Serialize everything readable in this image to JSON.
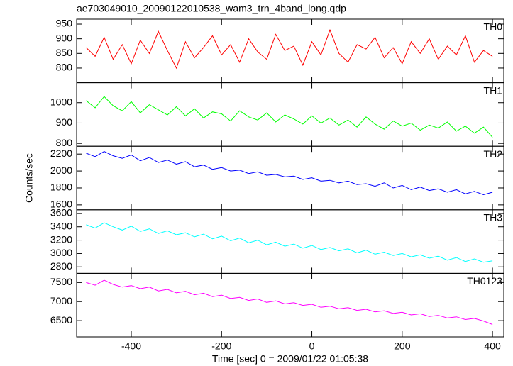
{
  "chart_data": {
    "type": "line",
    "title": "ae703049010_20090122010538_wam3_trn_4band_long.qdp",
    "xlabel": "Time [sec] 0 = 2009/01/22 01:05:38",
    "ylabel": "Counts/sec",
    "xlim": [
      -521,
      425
    ],
    "xticks": [
      -400,
      -200,
      0,
      200,
      400
    ],
    "x": [
      -500,
      -480,
      -460,
      -440,
      -420,
      -400,
      -380,
      -360,
      -340,
      -320,
      -300,
      -280,
      -260,
      -240,
      -220,
      -200,
      -180,
      -160,
      -140,
      -120,
      -100,
      -80,
      -60,
      -40,
      -20,
      0,
      20,
      40,
      60,
      80,
      100,
      120,
      140,
      160,
      180,
      200,
      220,
      240,
      260,
      280,
      300,
      320,
      340,
      360,
      380,
      400
    ],
    "series": [
      {
        "name": "TH0",
        "color": "#ff0000",
        "ylim": [
          750,
          967
        ],
        "yticks": [
          800,
          850,
          900,
          950
        ],
        "values": [
          870,
          840,
          905,
          830,
          880,
          815,
          895,
          850,
          925,
          860,
          800,
          890,
          835,
          870,
          910,
          845,
          880,
          820,
          900,
          855,
          830,
          915,
          860,
          875,
          810,
          890,
          845,
          930,
          850,
          820,
          880,
          865,
          905,
          835,
          870,
          815,
          890,
          850,
          900,
          830,
          875,
          845,
          910,
          820,
          860,
          840
        ]
      },
      {
        "name": "TH1",
        "color": "#00ff00",
        "ylim": [
          786,
          1098
        ],
        "yticks": [
          800,
          900,
          1000
        ],
        "values": [
          1010,
          975,
          1030,
          985,
          960,
          1005,
          950,
          990,
          965,
          940,
          980,
          935,
          970,
          925,
          955,
          945,
          910,
          960,
          930,
          915,
          950,
          905,
          940,
          920,
          895,
          935,
          900,
          925,
          890,
          915,
          880,
          930,
          895,
          870,
          910,
          885,
          900,
          865,
          890,
          875,
          905,
          860,
          885,
          850,
          880,
          830
        ]
      },
      {
        "name": "TH2",
        "color": "#0000ff",
        "ylim": [
          1542,
          2292
        ],
        "yticks": [
          1600,
          1800,
          2000,
          2200
        ],
        "values": [
          2210,
          2170,
          2230,
          2180,
          2150,
          2190,
          2120,
          2160,
          2100,
          2130,
          2080,
          2110,
          2050,
          2070,
          2020,
          2040,
          2000,
          2010,
          1970,
          1990,
          1950,
          1960,
          1930,
          1940,
          1900,
          1920,
          1880,
          1890,
          1860,
          1880,
          1840,
          1850,
          1820,
          1860,
          1800,
          1830,
          1780,
          1810,
          1770,
          1790,
          1750,
          1780,
          1730,
          1760,
          1720,
          1750
        ]
      },
      {
        "name": "TH3",
        "color": "#00ffff",
        "ylim": [
          2703,
          3654
        ],
        "yticks": [
          2800,
          3000,
          3200,
          3400,
          3600
        ],
        "values": [
          3430,
          3380,
          3460,
          3400,
          3350,
          3410,
          3330,
          3370,
          3300,
          3340,
          3280,
          3310,
          3250,
          3290,
          3220,
          3260,
          3190,
          3230,
          3160,
          3200,
          3130,
          3170,
          3110,
          3140,
          3080,
          3120,
          3060,
          3090,
          3040,
          3070,
          3010,
          3050,
          2990,
          3020,
          2970,
          3000,
          2950,
          2980,
          2930,
          2960,
          2900,
          2940,
          2880,
          2920,
          2870,
          2890
        ]
      },
      {
        "name": "TH0123",
        "color": "#ff00ff",
        "ylim": [
          6074,
          7741
        ],
        "yticks": [
          6500,
          7000,
          7500
        ],
        "values": [
          7500,
          7430,
          7560,
          7450,
          7380,
          7420,
          7340,
          7380,
          7280,
          7320,
          7230,
          7270,
          7180,
          7220,
          7130,
          7170,
          7080,
          7110,
          7030,
          7070,
          6980,
          7020,
          6940,
          6970,
          6900,
          6930,
          6850,
          6880,
          6810,
          6840,
          6770,
          6800,
          6730,
          6760,
          6690,
          6720,
          6650,
          6680,
          6610,
          6640,
          6570,
          6600,
          6530,
          6560,
          6490,
          6400
        ]
      }
    ]
  }
}
